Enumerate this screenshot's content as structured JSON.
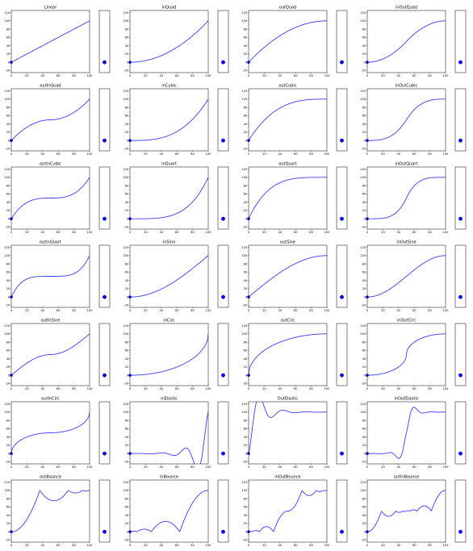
{
  "chart_data": {
    "type": "line",
    "grid": false,
    "xlim": [
      0,
      100
    ],
    "ylim": [
      -25,
      125
    ],
    "x_ticks": [
      "0",
      "20",
      "40",
      "60",
      "80",
      "100"
    ],
    "y_ticks": [
      "-20",
      "0",
      "20",
      "40",
      "60",
      "80",
      "100",
      "120"
    ],
    "line_color": "#3b3bff",
    "dot_color": "#0000ee",
    "panels": [
      {
        "title": "Linear",
        "easing": "linear",
        "dot_y": 0
      },
      {
        "title": "inQuad",
        "easing": "inQuad",
        "dot_y": 0
      },
      {
        "title": "outQuad",
        "easing": "outQuad",
        "dot_y": 0
      },
      {
        "title": "inOutQuad",
        "easing": "inOutQuad",
        "dot_y": 0
      },
      {
        "title": "outInQuad",
        "easing": "outInQuad",
        "dot_y": 0
      },
      {
        "title": "inCubic",
        "easing": "inCubic",
        "dot_y": 0
      },
      {
        "title": "outCubic",
        "easing": "outCubic",
        "dot_y": 0
      },
      {
        "title": "inOutCubic",
        "easing": "inOutCubic",
        "dot_y": 0
      },
      {
        "title": "outInCubic",
        "easing": "outInCubic",
        "dot_y": 0
      },
      {
        "title": "inQuart",
        "easing": "inQuart",
        "dot_y": 0
      },
      {
        "title": "outQuart",
        "easing": "outQuart",
        "dot_y": 0
      },
      {
        "title": "inOutQuart",
        "easing": "inOutQuart",
        "dot_y": 0
      },
      {
        "title": "outInQuart",
        "easing": "outInQuart",
        "dot_y": 0
      },
      {
        "title": "inSine",
        "easing": "inSine",
        "dot_y": 0
      },
      {
        "title": "outSine",
        "easing": "outSine",
        "dot_y": 0
      },
      {
        "title": "inOutSine",
        "easing": "inOutSine",
        "dot_y": 0
      },
      {
        "title": "outInSine",
        "easing": "outInSine",
        "dot_y": 0
      },
      {
        "title": "inCirc",
        "easing": "inCirc",
        "dot_y": 0
      },
      {
        "title": "outCirc",
        "easing": "outCirc",
        "dot_y": 0
      },
      {
        "title": "inOutCirc",
        "easing": "inOutCirc",
        "dot_y": 0
      },
      {
        "title": "outInCirc",
        "easing": "outInCirc",
        "dot_y": 0
      },
      {
        "title": "inElastic",
        "easing": "inElastic",
        "dot_y": 0
      },
      {
        "title": "OutElastic",
        "easing": "outElastic",
        "dot_y": 0
      },
      {
        "title": "inOutElastic",
        "easing": "inOutElastic",
        "dot_y": 0
      },
      {
        "title": "outBounce",
        "easing": "outBounce",
        "dot_y": 0
      },
      {
        "title": "inBounce",
        "easing": "inBounce",
        "dot_y": 0
      },
      {
        "title": "inOutBounce",
        "easing": "inOutBounce",
        "dot_y": 0
      },
      {
        "title": "outInBounce",
        "easing": "outInBounce",
        "dot_y": 0
      }
    ]
  }
}
